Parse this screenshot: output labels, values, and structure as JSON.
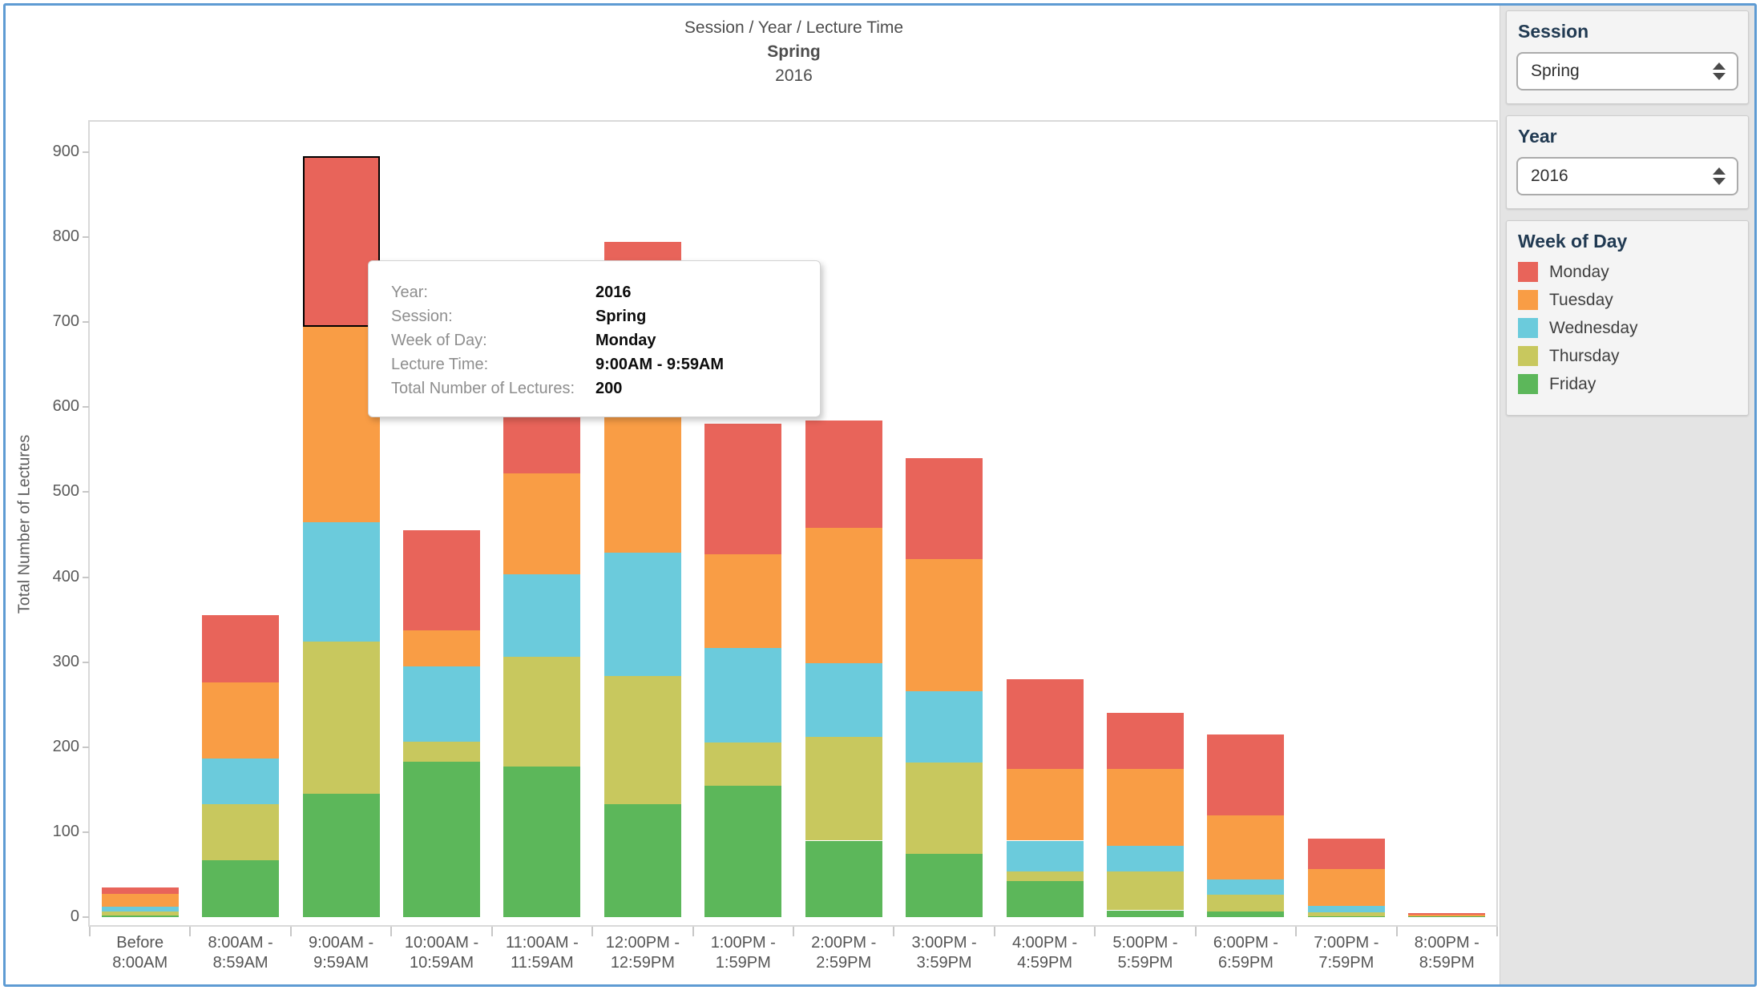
{
  "header": {
    "breadcrumb": "Session  /  Year  /  Lecture Time",
    "session_title": "Spring",
    "year_title": "2016"
  },
  "tooltip": {
    "rows": [
      {
        "label": "Year:",
        "value": "2016"
      },
      {
        "label": "Session:",
        "value": "Spring"
      },
      {
        "label": "Week of Day:",
        "value": "Monday"
      },
      {
        "label": "Lecture Time:",
        "value": "9:00AM - 9:59AM"
      },
      {
        "label": "Total Number of Lectures:",
        "value": "200"
      }
    ]
  },
  "sidebar": {
    "session": {
      "title": "Session",
      "selected": "Spring"
    },
    "year": {
      "title": "Year",
      "selected": "2016"
    },
    "week_of_day": {
      "title": "Week of Day",
      "items": [
        {
          "label": "Monday",
          "color": "#E8645A"
        },
        {
          "label": "Tuesday",
          "color": "#F99D45"
        },
        {
          "label": "Wednesday",
          "color": "#6BCBDC"
        },
        {
          "label": "Thursday",
          "color": "#C8C85E"
        },
        {
          "label": "Friday",
          "color": "#5CB75A"
        }
      ]
    }
  },
  "chart_data": {
    "type": "bar",
    "stacked": true,
    "title": "Session  /  Year  /  Lecture Time",
    "subtitle": "Spring",
    "subtitle2": "2016",
    "xlabel": "",
    "ylabel": "Total Number of Lectures",
    "ylim": [
      0,
      960
    ],
    "y_ticks": [
      0,
      100,
      200,
      300,
      400,
      500,
      600,
      700,
      800,
      900
    ],
    "grid": false,
    "legend_position": "right-panel",
    "categories": [
      "Before 8:00AM",
      "8:00AM - 8:59AM",
      "9:00AM - 9:59AM",
      "10:00AM - 10:59AM",
      "11:00AM - 11:59AM",
      "12:00PM - 12:59PM",
      "1:00PM - 1:59PM",
      "2:00PM - 2:59PM",
      "3:00PM - 3:59PM",
      "4:00PM - 4:59PM",
      "5:00PM - 5:59PM",
      "6:00PM - 6:59PM",
      "7:00PM - 7:59PM",
      "8:00PM - 8:59PM"
    ],
    "stack_bottom_to_top": [
      "Friday",
      "Thursday",
      "Wednesday",
      "Tuesday",
      "Monday"
    ],
    "series": [
      {
        "name": "Monday",
        "color": "#E8645A",
        "values": [
          8,
          79,
          200,
          118,
          68,
          174,
          154,
          126,
          119,
          106,
          66,
          95,
          35,
          2
        ]
      },
      {
        "name": "Tuesday",
        "color": "#F99D45",
        "values": [
          15,
          89,
          230,
          42,
          119,
          191,
          110,
          159,
          155,
          84,
          90,
          76,
          44,
          2
        ]
      },
      {
        "name": "Wednesday",
        "color": "#6BCBDC",
        "values": [
          5,
          54,
          141,
          89,
          97,
          145,
          112,
          87,
          84,
          36,
          30,
          18,
          7,
          0
        ]
      },
      {
        "name": "Thursday",
        "color": "#C8C85E",
        "values": [
          5,
          66,
          179,
          23,
          129,
          151,
          50,
          122,
          108,
          12,
          46,
          19,
          5,
          0
        ]
      },
      {
        "name": "Friday",
        "color": "#5CB75A",
        "values": [
          2,
          67,
          145,
          183,
          177,
          133,
          155,
          90,
          74,
          42,
          8,
          7,
          1,
          1
        ]
      }
    ],
    "totals": [
      35,
      355,
      895,
      455,
      590,
      794,
      581,
      584,
      540,
      280,
      240,
      215,
      92,
      5
    ],
    "highlight": {
      "category_index": 2,
      "series": "Monday"
    }
  }
}
